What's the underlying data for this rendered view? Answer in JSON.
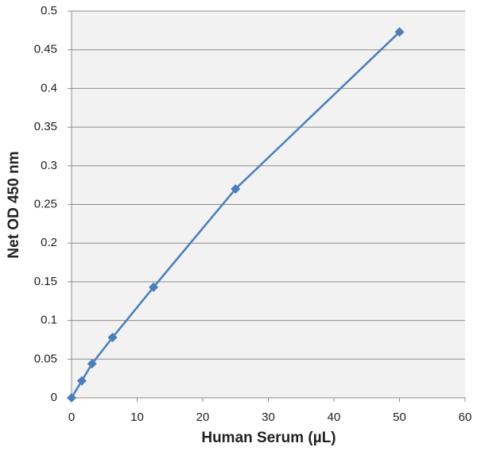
{
  "chart_data": {
    "type": "line",
    "x_label": "Human Serum (µL)",
    "y_label": "Net OD 450 nm",
    "x": [
      0,
      1.5625,
      3.125,
      6.25,
      12.5,
      25,
      50
    ],
    "series": [
      {
        "color": "#4a7ebb",
        "values": [
          0,
          0.022,
          0.044,
          0.078,
          0.143,
          0.27,
          0.473
        ]
      }
    ],
    "xlim": [
      0,
      60
    ],
    "xticks": [
      0,
      10,
      20,
      30,
      40,
      50,
      60
    ],
    "ylim": [
      0,
      0.5
    ],
    "yticks": [
      0,
      0.05,
      0.1,
      0.15,
      0.2,
      0.25,
      0.3,
      0.35,
      0.4,
      0.45,
      0.5
    ],
    "grid": true
  }
}
